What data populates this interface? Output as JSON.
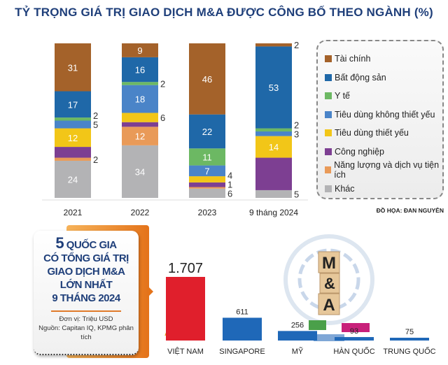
{
  "title": "TỶ TRỌNG GIÁ TRỊ GIAO DỊCH M&A ĐƯỢC CÔNG BỐ THEO NGÀNH (%)",
  "credit": "ĐỒ HỌA: ĐAN NGUYỄN",
  "chart_data": [
    {
      "type": "bar",
      "stacked": true,
      "title": "TỶ TRỌNG GIÁ TRỊ GIAO DỊCH M&A ĐƯỢC CÔNG BỐ THEO NGÀNH (%)",
      "categories": [
        "2021",
        "2022",
        "2023",
        "9 tháng 2024"
      ],
      "ylim": [
        0,
        100
      ],
      "legend_placement": "right",
      "series": [
        {
          "name": "Khác",
          "color": "#b3b3b5",
          "values": [
            24,
            34,
            6,
            5
          ],
          "labels": [
            "24",
            "34",
            "6",
            "5"
          ]
        },
        {
          "name": "Năng lượng và dịch vụ tiện ích",
          "color": "#e99a58",
          "values": [
            2,
            12,
            1,
            0
          ],
          "labels": [
            "2",
            "12",
            "1",
            ""
          ]
        },
        {
          "name": "Công nghiệp",
          "color": "#7d3f92",
          "values": [
            7,
            3,
            3,
            21
          ],
          "labels": [
            "",
            "",
            "",
            ""
          ]
        },
        {
          "name": "Tiêu dùng thiết yếu",
          "color": "#f2c618",
          "values": [
            12,
            6,
            4,
            14
          ],
          "labels": [
            "12",
            "6",
            "4",
            "14"
          ]
        },
        {
          "name": "Tiêu dùng không thiết yếu",
          "color": "#4a84c8",
          "values": [
            5,
            18,
            7,
            3
          ],
          "labels": [
            "5",
            "18",
            "7",
            "3"
          ]
        },
        {
          "name": "Y tế",
          "color": "#6cb863",
          "values": [
            2,
            2,
            11,
            2
          ],
          "labels": [
            "2",
            "2",
            "11",
            "2"
          ]
        },
        {
          "name": "Bất động sản",
          "color": "#1f68a8",
          "values": [
            17,
            16,
            22,
            53
          ],
          "labels": [
            "17",
            "16",
            "22",
            "53"
          ]
        },
        {
          "name": "Tài chính",
          "color": "#a4622a",
          "values": [
            31,
            9,
            46,
            2
          ],
          "labels": [
            "31",
            "9",
            "46",
            "2"
          ]
        }
      ]
    },
    {
      "type": "bar",
      "categories": [
        "VIỆT NAM",
        "SINGAPORE",
        "MỸ",
        "HÀN QUỐC",
        "TRUNG QUỐC"
      ],
      "values": [
        1707,
        611,
        256,
        93,
        75
      ],
      "value_labels": [
        "1.707",
        "611",
        "256",
        "93",
        "75"
      ],
      "colors": [
        "#e01f2c",
        "#1f68b8",
        "#1f68b8",
        "#1f68b8",
        "#1f68b8"
      ],
      "unit": "Triệu USD"
    }
  ],
  "infobox": {
    "line1_num": "5",
    "line1_text": " QUỐC GIA",
    "line2": "CÓ TỔNG GIÁ TRỊ",
    "line3": "GIAO DỊCH M&A",
    "line4": "LỚN NHẤT",
    "line5": "9 THÁNG 2024",
    "unit": "Đơn vị: Triệu USD",
    "source": "Nguồn: Capitan IQ, KPMG phân tích"
  },
  "logo_letters": [
    "M",
    "&",
    "A"
  ]
}
